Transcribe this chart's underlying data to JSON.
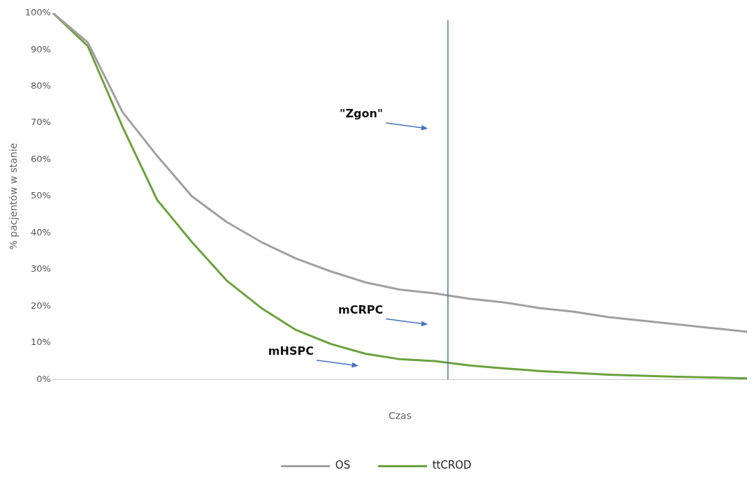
{
  "chart_data": {
    "type": "line",
    "xlabel": "Czas",
    "ylabel": "% pacjentów w stanie",
    "ylim": [
      0,
      100
    ],
    "yticks": [
      {
        "value": 0,
        "label": "0%"
      },
      {
        "value": 10,
        "label": "10%"
      },
      {
        "value": 20,
        "label": "20%"
      },
      {
        "value": 30,
        "label": "30%"
      },
      {
        "value": 40,
        "label": "40%"
      },
      {
        "value": 50,
        "label": "50%"
      },
      {
        "value": 60,
        "label": "60%"
      },
      {
        "value": 70,
        "label": "70%"
      },
      {
        "value": 80,
        "label": "80%"
      },
      {
        "value": 90,
        "label": "90%"
      },
      {
        "value": 100,
        "label": "100%"
      }
    ],
    "tick_labels": "y",
    "grid": false,
    "legend": "bottom",
    "marker": "none",
    "line_style": "solid",
    "categories": [
      null,
      null,
      null,
      null,
      null,
      null,
      null,
      null,
      null,
      null,
      null,
      null,
      null,
      null,
      null,
      null,
      null,
      null,
      null,
      null,
      null
    ],
    "series": [
      {
        "name": "OS",
        "color": "#a0a0a0",
        "values": [
          100,
          92,
          73,
          61,
          50,
          43,
          37.5,
          33,
          29.5,
          26.5,
          24.5,
          23.5,
          22,
          21,
          19.5,
          18.5,
          17,
          16,
          15,
          14,
          13
        ]
      },
      {
        "name": "ttCROD",
        "color": "#6aa23c",
        "values": [
          100,
          91,
          69,
          49,
          37.5,
          27,
          19.5,
          13.5,
          9.7,
          7,
          5.5,
          5,
          3.8,
          3,
          2.3,
          1.8,
          1.3,
          1,
          0.7,
          0.5,
          0.3
        ]
      }
    ],
    "ref_lines": [
      {
        "axis": "x",
        "value": null,
        "color": "#4472c4"
      }
    ],
    "annotations": [
      "\"Zgon\"",
      "mCRPC",
      "mHSPC"
    ]
  }
}
